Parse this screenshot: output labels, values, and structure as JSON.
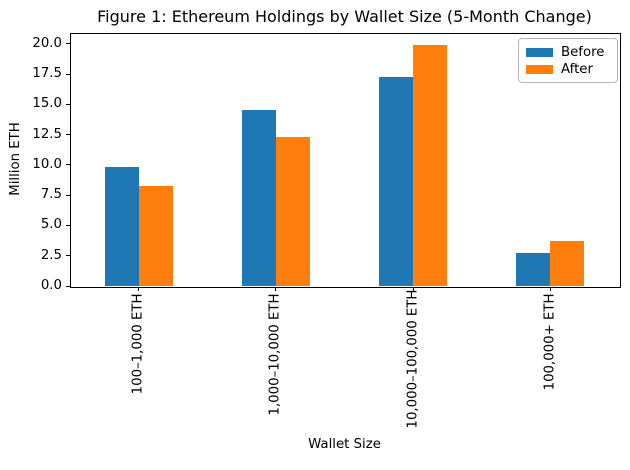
{
  "chart_data": {
    "type": "bar",
    "title": "Figure 1: Ethereum Holdings by Wallet Size (5-Month Change)",
    "xlabel": "Wallet Size",
    "ylabel": "Million ETH",
    "categories": [
      "100–1,000 ETH",
      "1,000–10,000 ETH",
      "10,000–100,000 ETH",
      "100,000+ ETH"
    ],
    "series": [
      {
        "name": "Before",
        "color": "#1f77b4",
        "values": [
          9.8,
          14.5,
          17.3,
          2.7
        ]
      },
      {
        "name": "After",
        "color": "#ff7f0e",
        "values": [
          8.3,
          12.3,
          19.9,
          3.7
        ]
      }
    ],
    "ytick_labels": [
      "0.0",
      "2.5",
      "5.0",
      "7.5",
      "10.0",
      "12.5",
      "15.0",
      "17.5",
      "20.0"
    ],
    "yticks": [
      0,
      2.5,
      5,
      7.5,
      10,
      12.5,
      15,
      17.5,
      20
    ],
    "ylim": [
      0,
      20.9
    ],
    "grid": false,
    "legend": {
      "position": "upper right",
      "entries": [
        "Before",
        "After"
      ]
    }
  }
}
